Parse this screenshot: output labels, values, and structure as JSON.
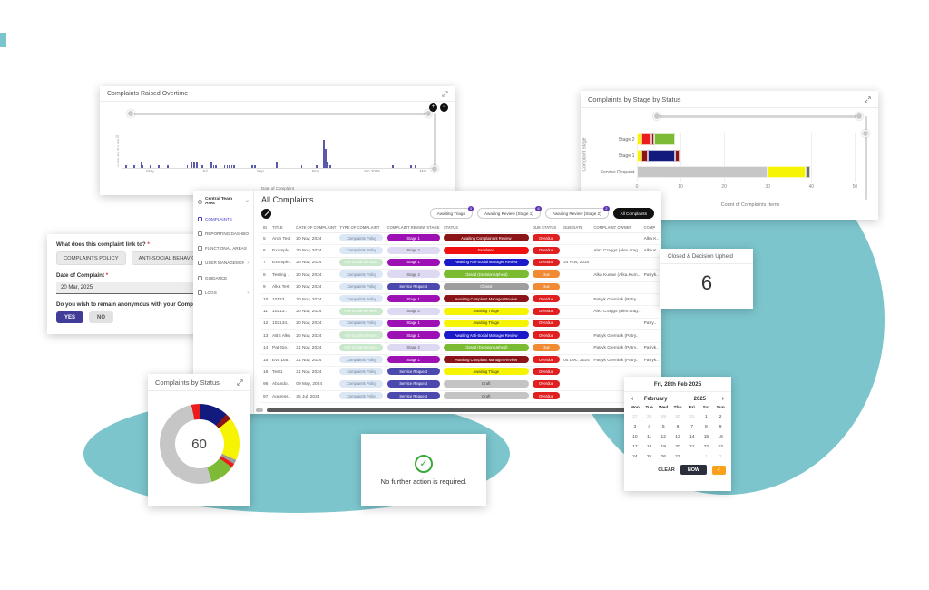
{
  "background": {
    "blob_color": "#7CC5CD"
  },
  "chart_data": [
    {
      "type": "bar",
      "title": "Complaints Raised Overtime",
      "xlabel": "Date of Complaint",
      "ylim": [
        0,
        10
      ],
      "y_ticks": [
        1,
        2,
        3,
        4,
        5,
        6,
        7,
        8,
        9,
        10
      ],
      "x_ticks": [
        [
          "May",
          0.092
        ],
        [
          "Jul",
          0.268
        ],
        [
          "Sep",
          0.447
        ],
        [
          "Nov",
          0.625
        ],
        [
          "Jan 2025",
          0.806
        ],
        [
          "Mar",
          0.972
        ]
      ],
      "bar_color": "#5B59A9",
      "bars": [
        [
          0.012,
          1
        ],
        [
          0.038,
          1
        ],
        [
          0.06,
          2
        ],
        [
          0.066,
          1
        ],
        [
          0.09,
          1
        ],
        [
          0.117,
          1
        ],
        [
          0.146,
          1
        ],
        [
          0.157,
          1
        ],
        [
          0.21,
          1
        ],
        [
          0.222,
          2
        ],
        [
          0.231,
          2
        ],
        [
          0.241,
          2
        ],
        [
          0.251,
          2
        ],
        [
          0.258,
          1
        ],
        [
          0.287,
          2
        ],
        [
          0.294,
          1
        ],
        [
          0.302,
          1
        ],
        [
          0.33,
          1
        ],
        [
          0.338,
          1
        ],
        [
          0.346,
          1
        ],
        [
          0.353,
          1
        ],
        [
          0.361,
          1
        ],
        [
          0.408,
          1
        ],
        [
          0.419,
          1
        ],
        [
          0.428,
          1
        ],
        [
          0.497,
          2
        ],
        [
          0.505,
          1
        ],
        [
          0.578,
          1
        ],
        [
          0.627,
          1
        ],
        [
          0.65,
          9
        ],
        [
          0.656,
          6
        ],
        [
          0.662,
          2
        ],
        [
          0.67,
          1
        ],
        [
          0.872,
          1
        ],
        [
          0.93,
          1
        ],
        [
          0.944,
          1
        ]
      ]
    },
    {
      "type": "bar",
      "title": "Complaints by Stage by Status",
      "xlabel": "Count of Complaints Items",
      "ylabel": "Complaint Stage",
      "x_ticks": [
        0,
        10,
        20,
        30,
        40,
        50
      ],
      "x_max": 52,
      "rows": [
        {
          "label": "Stage 2",
          "segments": [
            {
              "c": "#F6F303",
              "v": 1
            },
            {
              "c": "#ED1C1C",
              "v": 2.5
            },
            {
              "c": "#8B1418",
              "v": 0.5
            },
            {
              "c": "#7DBB36",
              "v": 5
            }
          ]
        },
        {
          "label": "Stage 1",
          "segments": [
            {
              "c": "#F6F303",
              "v": 1
            },
            {
              "c": "#8B1418",
              "v": 1.5
            },
            {
              "c": "#121A7D",
              "v": 6.5
            },
            {
              "c": "#8B1418",
              "v": 1
            }
          ]
        },
        {
          "label": "Service Request",
          "segments": [
            {
              "c": "#C6C6C6",
              "v": 31
            },
            {
              "c": "#F6F303",
              "v": 9
            },
            {
              "c": "#6E6E6E",
              "v": 1
            }
          ]
        }
      ]
    },
    {
      "type": "pie",
      "title": "Complaints by Status",
      "center_label": "60",
      "total": 60,
      "segments": [
        {
          "c": "#121A7D",
          "v": 7
        },
        {
          "c": "#8B1418",
          "v": 1.5
        },
        {
          "c": "#F6F303",
          "v": 10.5
        },
        {
          "c": "#9E9E9E",
          "v": 1
        },
        {
          "c": "#ED1C1C",
          "v": 1
        },
        {
          "c": "#7DBB36",
          "v": 6
        },
        {
          "c": "#C6C6C6",
          "v": 31
        },
        {
          "c": "#ED1C1C",
          "v": 2
        }
      ]
    }
  ],
  "link_form": {
    "question1": "What does this complaint link to?",
    "star": "*",
    "options": [
      "COMPLAINTS POLICY",
      "ANTI-SOCIAL BEHAVIOUR POLICY"
    ],
    "date_label": "Date of Complaint",
    "date_value": "20 Mar, 2025",
    "question2": "Do you wish to remain anonymous with your Complaint?",
    "yes_label": "YES",
    "no_label": "NO"
  },
  "complaints_app": {
    "workspace": "Central Team Area",
    "nav_items": [
      {
        "label": "COMPLAINTS",
        "icon": "complaints-icon",
        "active": true,
        "arrow": false
      },
      {
        "label": "REPORTING DASHBOARD",
        "icon": "reporting-dashboard-icon",
        "active": false,
        "arrow": false
      },
      {
        "label": "FUNCTIONAL AREAS",
        "icon": "functional-areas-icon",
        "active": false,
        "arrow": false
      },
      {
        "label": "USER MANAGEMENT",
        "icon": "user-management-icon",
        "active": false,
        "arrow": true
      },
      {
        "label": "GUIDANCE",
        "icon": "guidance-icon",
        "active": false,
        "arrow": false
      },
      {
        "label": "LOGS",
        "icon": "logs-icon",
        "active": false,
        "arrow": true
      }
    ],
    "title": "All Complaints",
    "filter_chips": [
      {
        "label": "Awaiting Triage",
        "badge": "3",
        "selected": false
      },
      {
        "label": "Awaiting Review (Stage 1)",
        "badge": "6",
        "selected": false
      },
      {
        "label": "Awaiting Review (Stage 2)",
        "badge": "2",
        "selected": false
      },
      {
        "label": "All Complaints",
        "badge": "",
        "selected": true
      }
    ],
    "columns": [
      "ID",
      "TITLE",
      "DATE OF COMPLAINT",
      "TYPE OF COMPLAINT",
      "COMPLAINT REVIEW STAGE",
      "STATUS",
      "DUE STATUS",
      "DUE DATE",
      "COMPLAINT OWNER",
      "COMP"
    ],
    "type_chips": {
      "policy": {
        "label": "Complaints Policy",
        "bg": "#DCE7F5",
        "fg": "#6B7E95"
      },
      "asb": {
        "label": "Anti-Social Behavio..",
        "bg": "#C9E7CA",
        "fg": "#FBFDFB"
      }
    },
    "stage_chips": {
      "s1": {
        "label": "Stage 1",
        "bg": "#9C10B4",
        "fg": "#ffffff"
      },
      "s2": {
        "label": "Stage 2",
        "bg": "#DDD9F2",
        "fg": "#555555"
      },
      "sr": {
        "label": "Service Request",
        "bg": "#4B49AE",
        "fg": "#ffffff"
      }
    },
    "status_chips": {
      "acr": {
        "label": "Awaiting Complainant Review",
        "bg": "#8B1418",
        "fg": "#ffffff"
      },
      "esc": {
        "label": "Escalated",
        "bg": "#F20F0F",
        "fg": "#ffffff"
      },
      "aasmr": {
        "label": "Awaiting Anti-Social Manager Review",
        "bg": "#1A1AC8",
        "fg": "#ffffff"
      },
      "cdu": {
        "label": "Closed (Decision Upheld)",
        "bg": "#7ABB31",
        "fg": "#ffffff"
      },
      "closed": {
        "label": "Closed",
        "bg": "#9E9E9E",
        "fg": "#ffffff"
      },
      "acmr": {
        "label": "Awaiting Complaint Manager Review",
        "bg": "#8B1418",
        "fg": "#ffffff"
      },
      "triage": {
        "label": "Awaiting Triage",
        "bg": "#F6F303",
        "fg": "#333333"
      },
      "draft": {
        "label": "Draft",
        "bg": "#C4C4C4",
        "fg": "#444444"
      }
    },
    "due_chips": {
      "overdue": {
        "label": "Overdue",
        "bg": "#E02020",
        "fg": "#ffffff"
      },
      "due": {
        "label": "Due",
        "bg": "#F08B33",
        "fg": "#ffffff"
      }
    },
    "rows": [
      {
        "id": "5",
        "title": "Aron Test",
        "date": "20 Nov, 2024",
        "type": "policy",
        "stage": "s1",
        "status": "acr",
        "due": "overdue",
        "due_date": "",
        "owner": "",
        "last": "Alka K.."
      },
      {
        "id": "6",
        "title": "Example..",
        "date": "20 Nov, 2024",
        "type": "policy",
        "stage": "s2",
        "status": "esc",
        "due": "overdue",
        "due_date": "",
        "owner": "Alex Craggs (alex.crag..",
        "last": "Alka K.."
      },
      {
        "id": "7",
        "title": "Example..",
        "date": "20 Nov, 2024",
        "type": "asb",
        "stage": "s1",
        "status": "aasmr",
        "due": "overdue",
        "due_date": "24 Nov, 2024",
        "owner": "",
        "last": ""
      },
      {
        "id": "8",
        "title": "Testing ..",
        "date": "20 Nov, 2024",
        "type": "policy",
        "stage": "s2",
        "status": "cdu",
        "due": "due",
        "due_date": "",
        "owner": "Alka Kumar (Alka.Kum..",
        "last": "Patryk.."
      },
      {
        "id": "9",
        "title": "Alka Test",
        "date": "20 Nov, 2024",
        "type": "policy",
        "stage": "sr",
        "status": "closed",
        "due": "due",
        "due_date": "",
        "owner": "",
        "last": ""
      },
      {
        "id": "10",
        "title": "10123",
        "date": "20 Nov, 2024",
        "type": "policy",
        "stage": "s1",
        "status": "acmr",
        "due": "overdue",
        "due_date": "",
        "owner": "Patryk Gierniak (Patry..",
        "last": ""
      },
      {
        "id": "11",
        "title": "10213..",
        "date": "20 Nov, 2024",
        "type": "asb",
        "stage": "s2",
        "status": "triage",
        "due": "overdue",
        "due_date": "",
        "owner": "Alex Craggs (alex.crag..",
        "last": ""
      },
      {
        "id": "12",
        "title": "102134..",
        "date": "20 Nov, 2024",
        "type": "policy",
        "stage": "s1",
        "status": "triage",
        "due": "overdue",
        "due_date": "",
        "owner": "",
        "last": "Patry.."
      },
      {
        "id": "13",
        "title": "ABS Alka",
        "date": "20 Nov, 2024",
        "type": "asb",
        "stage": "s1",
        "status": "aasmr",
        "due": "overdue",
        "due_date": "",
        "owner": "Patryk Gierniak (Patry..",
        "last": ""
      },
      {
        "id": "14",
        "title": "Pat Gie..",
        "date": "21 Nov, 2024",
        "type": "asb",
        "stage": "s2",
        "status": "cdu",
        "due": "due",
        "due_date": "",
        "owner": "Patryk Gierniak (Patry..",
        "last": "Patryk.."
      },
      {
        "id": "15",
        "title": "Eva Dat..",
        "date": "21 Nov, 2024",
        "type": "policy",
        "stage": "s1",
        "status": "acmr",
        "due": "overdue",
        "due_date": "04 Dec, 2024",
        "owner": "Patryk Gierniak (Patry..",
        "last": "Patryk.."
      },
      {
        "id": "16",
        "title": "Test1",
        "date": "21 Nov, 2024",
        "type": "policy",
        "stage": "sr",
        "status": "triage",
        "due": "overdue",
        "due_date": "",
        "owner": "",
        "last": ""
      },
      {
        "id": "96",
        "title": "Abando..",
        "date": "09 May, 2024",
        "type": "policy",
        "stage": "sr",
        "status": "draft",
        "due": "overdue",
        "due_date": "",
        "owner": "",
        "last": ""
      },
      {
        "id": "97",
        "title": "Aggress..",
        "date": "25 Jul, 2024",
        "type": "policy",
        "stage": "sr",
        "status": "draft",
        "due": "overdue",
        "due_date": "",
        "owner": "",
        "last": ""
      }
    ]
  },
  "closed_card": {
    "title": "Closed & Decision Upheld",
    "value": "6"
  },
  "no_action_card": {
    "text": "No further action is required."
  },
  "calendar": {
    "title": "Fri, 28th Feb 2025",
    "month": "February",
    "year": "2025",
    "weekdays": [
      "Mon",
      "Tue",
      "Wed",
      "Thu",
      "Fri",
      "Sat",
      "Sun"
    ],
    "cells": [
      {
        "d": "27",
        "muted": true
      },
      {
        "d": "28",
        "muted": true
      },
      {
        "d": "29",
        "muted": true
      },
      {
        "d": "30",
        "muted": true
      },
      {
        "d": "31",
        "muted": true
      },
      {
        "d": "1"
      },
      {
        "d": "2"
      },
      {
        "d": "3"
      },
      {
        "d": "4"
      },
      {
        "d": "5"
      },
      {
        "d": "6"
      },
      {
        "d": "7"
      },
      {
        "d": "8"
      },
      {
        "d": "9"
      },
      {
        "d": "10"
      },
      {
        "d": "11"
      },
      {
        "d": "12"
      },
      {
        "d": "13"
      },
      {
        "d": "14"
      },
      {
        "d": "15"
      },
      {
        "d": "16"
      },
      {
        "d": "17"
      },
      {
        "d": "18"
      },
      {
        "d": "19"
      },
      {
        "d": "20"
      },
      {
        "d": "21"
      },
      {
        "d": "22"
      },
      {
        "d": "23"
      },
      {
        "d": "24"
      },
      {
        "d": "25"
      },
      {
        "d": "26"
      },
      {
        "d": "27"
      },
      {
        "d": "28",
        "selected": true
      },
      {
        "d": "1",
        "muted": true
      },
      {
        "d": "2",
        "muted": true
      }
    ],
    "clear_label": "CLEAR",
    "now_label": "NOW"
  }
}
